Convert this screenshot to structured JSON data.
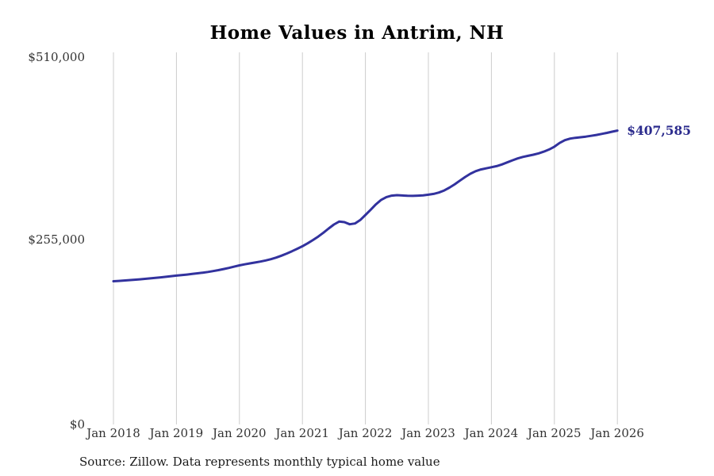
{
  "title": "Home Values in Antrim, NH",
  "source_note": "Source: Zillow. Data represents monthly typical home value",
  "colors": {
    "line": "#32329e",
    "annotation": "#2b2b8d",
    "gridline": "#cccccc",
    "tick_text": "#333333",
    "title_text": "#000000"
  },
  "chart_data": {
    "type": "line",
    "title": "Home Values in Antrim, NH",
    "xlabel": "",
    "ylabel": "",
    "frequency": "monthly",
    "x_start_month": "Jan 2018",
    "x_end_month": "Jan 2026",
    "x_tick_labels": [
      "Jan 2018",
      "Jan 2019",
      "Jan 2020",
      "Jan 2021",
      "Jan 2022",
      "Jan 2023",
      "Jan 2024",
      "Jan 2025",
      "Jan 2026"
    ],
    "y_ticks": [
      0,
      255000,
      510000
    ],
    "y_tick_labels": [
      "$0",
      "$255,000",
      "$510,000"
    ],
    "ylim": [
      0,
      510000
    ],
    "grid": "vertical-only",
    "legend": "none",
    "annotation": {
      "text": "$407,585",
      "value": 407585,
      "position": "line-end"
    },
    "series": [
      {
        "name": "Monthly typical home value",
        "color": "#32329e",
        "values": [
          198600,
          199100,
          199600,
          200100,
          200700,
          201300,
          201900,
          202600,
          203300,
          204000,
          204800,
          205600,
          206400,
          207100,
          207900,
          208700,
          209600,
          210500,
          211500,
          212700,
          214000,
          215500,
          217100,
          218800,
          220600,
          222100,
          223400,
          224600,
          225900,
          227400,
          229200,
          231400,
          234000,
          237000,
          240200,
          243600,
          247100,
          251200,
          255700,
          260600,
          266000,
          271800,
          277300,
          281400,
          280600,
          277600,
          278700,
          283400,
          290500,
          297800,
          305200,
          311500,
          315400,
          317300,
          318000,
          317600,
          317100,
          317000,
          317300,
          317800,
          318600,
          319700,
          321600,
          324500,
          328400,
          333000,
          338100,
          343200,
          347700,
          351200,
          353600,
          355200,
          356700,
          358300,
          360600,
          363400,
          366300,
          368900,
          371000,
          372600,
          374100,
          376000,
          378400,
          381400,
          385200,
          390400,
          394300,
          396400,
          397500,
          398300,
          399200,
          400300,
          401500,
          402900,
          404400,
          406000,
          407585
        ]
      }
    ]
  }
}
